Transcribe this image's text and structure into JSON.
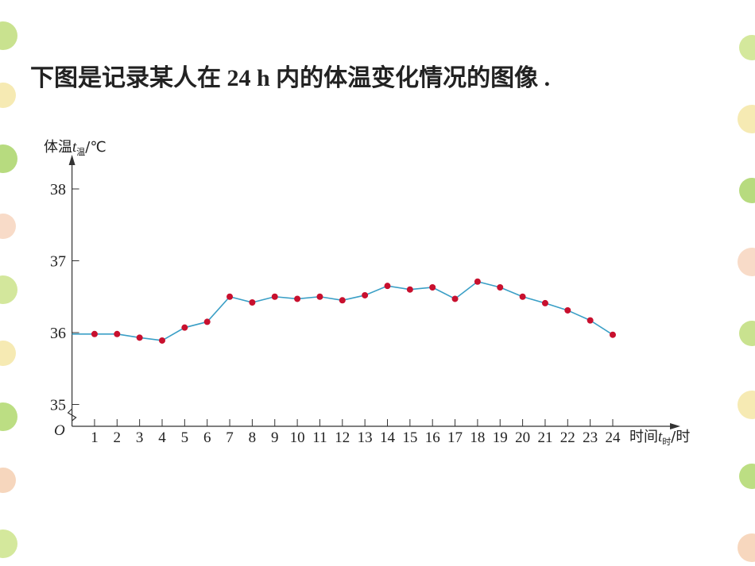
{
  "heading": "下图是记录某人在 24 h 内的体温变化情况的图像 .",
  "chart_data": {
    "type": "line",
    "y_label": {
      "text": "体温",
      "var": "t",
      "sub": "温",
      "unit": "/℃"
    },
    "x_label": {
      "text": "时间",
      "var": "t",
      "sub": "时",
      "unit": "/时"
    },
    "origin_label": "O",
    "x": [
      0,
      1,
      2,
      3,
      4,
      5,
      6,
      7,
      8,
      9,
      10,
      11,
      12,
      13,
      14,
      15,
      16,
      17,
      18,
      19,
      20,
      21,
      22,
      23,
      24
    ],
    "series": [
      {
        "name": "体温",
        "color": "#3a9fc6",
        "marker_color": "#c8102e",
        "values": [
          35.98,
          35.98,
          35.98,
          35.93,
          35.89,
          36.07,
          36.15,
          36.5,
          36.42,
          36.5,
          36.47,
          36.5,
          36.45,
          36.52,
          36.65,
          36.6,
          36.63,
          36.47,
          36.71,
          36.63,
          36.5,
          36.41,
          36.31,
          36.17,
          35.97
        ]
      }
    ],
    "xlim": [
      0,
      26.4
    ],
    "xticks": [
      1,
      2,
      3,
      4,
      5,
      6,
      7,
      8,
      9,
      10,
      11,
      12,
      13,
      14,
      15,
      16,
      17,
      18,
      19,
      20,
      21,
      22,
      23,
      24
    ],
    "ylim": [
      35,
      38.2
    ],
    "yticks": [
      35,
      36,
      37,
      38
    ]
  }
}
